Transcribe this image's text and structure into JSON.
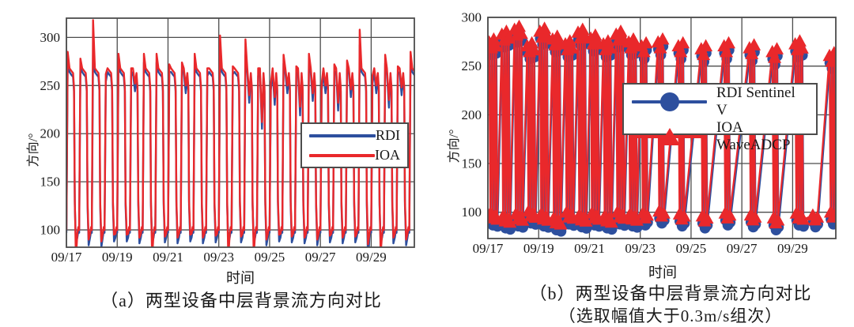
{
  "colors": {
    "rdi_blue": "#2d4f9e",
    "ioa_red": "#e9282b",
    "grid": "#4c4c4c",
    "text": "#1a1a1a"
  },
  "charts": [
    {
      "id": "a",
      "caption": "（a）两型设备中层背景流方向对比",
      "xlabel": "时间",
      "ylabel": "方向/°",
      "legend": [
        {
          "label": "RDI",
          "marker": "line",
          "color": "#2d4f9e"
        },
        {
          "label": "IOA",
          "marker": "line",
          "color": "#e9282b"
        }
      ]
    },
    {
      "id": "b",
      "caption": "（b）两型设备中层背景流方向对比",
      "caption2": "（选取幅值大于0.3m/s组次）",
      "xlabel": "时间",
      "ylabel": "方向/°",
      "legend": [
        {
          "label": "RDI Sentinel V",
          "marker": "circle",
          "color": "#2d4f9e"
        },
        {
          "label": "IOA WaveADCP",
          "marker": "triangle",
          "color": "#e9282b"
        }
      ]
    }
  ],
  "chart_data": [
    {
      "type": "line",
      "title": "",
      "xlabel": "时间",
      "ylabel": "方向/°",
      "x_tick_labels": [
        "09/17",
        "09/19",
        "09/21",
        "09/23",
        "09/25",
        "09/27",
        "09/29"
      ],
      "x_tick_days": [
        0,
        2,
        4,
        6,
        8,
        10,
        12
      ],
      "xlim_days": [
        0,
        13.7
      ],
      "y_ticks": [
        100,
        150,
        200,
        250,
        300
      ],
      "ylim": [
        82,
        320
      ],
      "grid": true,
      "legend_position": "center-right",
      "cycle_period_days": 0.5,
      "cycle_shape": [
        [
          0.0,
          "base"
        ],
        [
          0.05,
          "peak"
        ],
        [
          0.12,
          "plat1"
        ],
        [
          0.2,
          "dip"
        ],
        [
          0.26,
          "plat2"
        ],
        [
          0.3,
          "plat3"
        ],
        [
          0.33,
          "mid"
        ],
        [
          0.375,
          "trough"
        ],
        [
          0.43,
          "low1"
        ],
        [
          0.47,
          "low2"
        ]
      ],
      "series": [
        {
          "name": "RDI",
          "color": "#2d4f9e",
          "levels": {
            "base": 97,
            "plat1": 264,
            "plat2": 259,
            "plat3": 244,
            "mid": 126,
            "low1": 92,
            "low2": 99,
            "dip": 261
          },
          "peaks": [
            276,
            269,
            284,
            254,
            274,
            260,
            274,
            274,
            264,
            266,
            274,
            260,
            288,
            262,
            282,
            260,
            245,
            273,
            262,
            274,
            245,
            264,
            267,
            292,
            252,
            273,
            262,
            276
          ],
          "troughs": [
            86,
            84,
            82,
            88,
            88,
            86,
            86,
            87,
            86,
            88,
            86,
            87,
            85,
            87,
            86,
            84,
            88,
            87,
            86,
            84,
            87,
            86,
            87,
            68,
            86,
            86,
            84,
            88
          ],
          "dips": [
            null,
            null,
            null,
            null,
            null,
            244,
            null,
            null,
            null,
            242,
            null,
            null,
            null,
            null,
            232,
            205,
            230,
            242,
            219,
            234,
            242,
            224,
            238,
            null,
            242,
            227,
            240,
            null
          ]
        },
        {
          "name": "IOA",
          "color": "#e9282b",
          "levels": {
            "base": 100,
            "plat1": 268,
            "plat2": 263,
            "plat3": 248,
            "mid": 130,
            "low1": 96,
            "low2": 103,
            "dip": 265
          },
          "peaks": [
            285,
            278,
            318,
            262,
            283,
            268,
            283,
            283,
            272,
            274,
            283,
            268,
            302,
            270,
            298,
            268,
            252,
            282,
            270,
            283,
            252,
            272,
            276,
            308,
            260,
            282,
            270,
            285
          ],
          "troughs": [
            70,
            90,
            88,
            95,
            95,
            92,
            72,
            93,
            92,
            95,
            92,
            94,
            70,
            93,
            74,
            90,
            95,
            93,
            92,
            90,
            94,
            92,
            93,
            85,
            75,
            92,
            90,
            95
          ],
          "dips": [
            null,
            null,
            null,
            null,
            null,
            252,
            null,
            null,
            null,
            250,
            null,
            null,
            null,
            null,
            240,
            212,
            238,
            250,
            228,
            242,
            250,
            232,
            246,
            null,
            250,
            235,
            248,
            null
          ]
        }
      ]
    },
    {
      "type": "scatter-line",
      "title": "",
      "xlabel": "时间",
      "ylabel": "方向/°",
      "x_tick_labels": [
        "09/17",
        "09/19",
        "09/21",
        "09/23",
        "09/25",
        "09/27",
        "09/29"
      ],
      "x_tick_days": [
        0,
        2,
        4,
        6,
        8,
        10,
        12
      ],
      "xlim_days": [
        0,
        13.7
      ],
      "y_ticks": [
        100,
        150,
        200,
        250,
        300
      ],
      "ylim": [
        73,
        300
      ],
      "grid": true,
      "legend_position": "upper-right",
      "marker_spacing_days": 0.09,
      "jitter": [
        0.4,
        -0.6,
        0.9,
        -0.3
      ],
      "value_jitter": 6,
      "series": [
        {
          "name": "RDI Sentinel V",
          "color": "#2d4f9e",
          "marker": "circle",
          "value_offset": -7,
          "time_offset": 0.015
        },
        {
          "name": "IOA WaveADCP",
          "color": "#e9282b",
          "marker": "triangle",
          "value_offset": 0,
          "time_offset": 0
        }
      ],
      "clusters": [
        {
          "t": 0.05,
          "high": 272,
          "low": 95,
          "n": 4
        },
        {
          "t": 0.55,
          "high": 280,
          "low": 92,
          "n": 4
        },
        {
          "t": 1.05,
          "high": 285,
          "low": 94,
          "n": 4
        },
        {
          "t": 1.55,
          "high": 268,
          "low": 97,
          "n": 4
        },
        {
          "t": 2.05,
          "high": 283,
          "low": 94,
          "n": 4
        },
        {
          "t": 2.55,
          "high": 275,
          "low": 90,
          "n": 4
        },
        {
          "t": 3.05,
          "high": 270,
          "low": 96,
          "n": 4
        },
        {
          "t": 3.55,
          "high": 282,
          "low": 93,
          "n": 4
        },
        {
          "t": 4.05,
          "high": 276,
          "low": 95,
          "n": 4
        },
        {
          "t": 4.55,
          "high": 270,
          "low": 92,
          "n": 4
        },
        {
          "t": 5.05,
          "high": 280,
          "low": 96,
          "n": 4
        },
        {
          "t": 5.55,
          "high": 272,
          "low": 94,
          "n": 4
        },
        {
          "t": 6.05,
          "high": 268,
          "low": 95,
          "n": 3
        },
        {
          "t": 6.7,
          "high": 272,
          "low": 97,
          "n": 3
        },
        {
          "t": 7.5,
          "high": 268,
          "low": 94,
          "n": 3
        },
        {
          "t": 8.4,
          "high": 265,
          "low": 92,
          "n": 3
        },
        {
          "t": 9.3,
          "high": 268,
          "low": 95,
          "n": 3
        },
        {
          "t": 10.3,
          "high": 266,
          "low": 93,
          "n": 3
        },
        {
          "t": 11.2,
          "high": 262,
          "low": 90,
          "n": 3
        },
        {
          "t": 12.1,
          "high": 270,
          "low": 95,
          "n": 4
        },
        {
          "t": 12.75,
          "high": null,
          "low": 93,
          "n": 3
        },
        {
          "t": 13.45,
          "high": 258,
          "low": 96,
          "n": 3
        }
      ]
    }
  ]
}
